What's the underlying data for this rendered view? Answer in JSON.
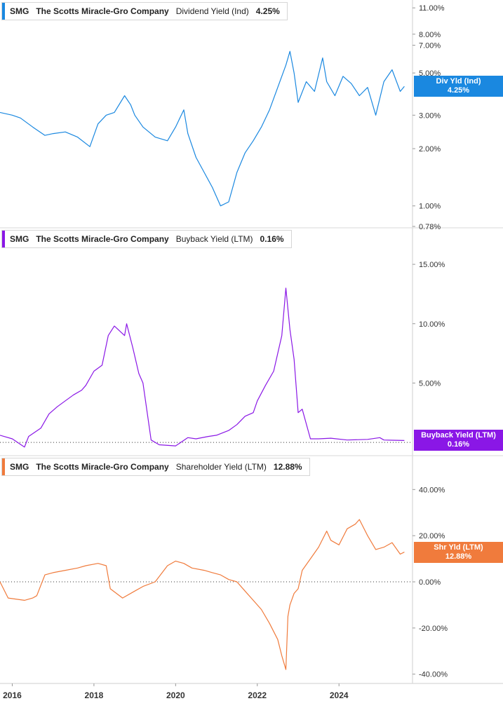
{
  "colors": {
    "dividend": "#1a88e0",
    "buyback": "#8a17e6",
    "shareholder": "#f07b3c"
  },
  "x_axis": {
    "ticks": [
      "2016",
      "2018",
      "2020",
      "2022",
      "2024"
    ]
  },
  "panels": [
    {
      "ticker": "SMG",
      "company": "The Scotts Miracle-Gro Company",
      "metric": "Dividend Yield (Ind)",
      "value": "4.25%",
      "pill_title": "Div Yld (Ind)",
      "pill_value": "4.25%",
      "color": "#1a88e0",
      "y_ticks": [
        "11.00%",
        "8.00%",
        "7.00%",
        "5.00%",
        "3.00%",
        "2.00%",
        "1.00%",
        "0.78%"
      ]
    },
    {
      "ticker": "SMG",
      "company": "The Scotts Miracle-Gro Company",
      "metric": "Buyback Yield (LTM)",
      "value": "0.16%",
      "pill_title": "Buyback Yield (LTM)",
      "pill_value": "0.16%",
      "color": "#8a17e6",
      "y_ticks": [
        "15.00%",
        "10.00%",
        "5.00%"
      ]
    },
    {
      "ticker": "SMG",
      "company": "The Scotts Miracle-Gro Company",
      "metric": "Shareholder Yield (LTM)",
      "value": "12.88%",
      "pill_title": "Shr Yld (LTM)",
      "pill_value": "12.88%",
      "color": "#f07b3c",
      "y_ticks": [
        "40.00%",
        "20.00%",
        "0.00%",
        "-20.00%",
        "-40.00%"
      ]
    }
  ],
  "chart_data": [
    {
      "type": "line",
      "scale": "log",
      "series": [
        {
          "name": "Dividend Yield (Ind)",
          "x": [
            2015.7,
            2016.0,
            2016.2,
            2016.5,
            2016.8,
            2017.0,
            2017.3,
            2017.6,
            2017.9,
            2018.1,
            2018.3,
            2018.5,
            2018.75,
            2018.9,
            2019.0,
            2019.2,
            2019.5,
            2019.8,
            2020.0,
            2020.2,
            2020.3,
            2020.5,
            2020.7,
            2020.9,
            2021.1,
            2021.3,
            2021.5,
            2021.7,
            2021.9,
            2022.1,
            2022.3,
            2022.5,
            2022.7,
            2022.8,
            2022.9,
            2023.0,
            2023.2,
            2023.4,
            2023.6,
            2023.7,
            2023.9,
            2024.1,
            2024.3,
            2024.5,
            2024.7,
            2024.9,
            2025.1,
            2025.3,
            2025.5,
            2025.6
          ],
          "y": [
            3.1,
            3.0,
            2.9,
            2.6,
            2.35,
            2.4,
            2.45,
            2.3,
            2.05,
            2.7,
            3.0,
            3.1,
            3.8,
            3.4,
            3.0,
            2.6,
            2.3,
            2.2,
            2.6,
            3.2,
            2.4,
            1.8,
            1.5,
            1.25,
            1.0,
            1.05,
            1.5,
            1.9,
            2.2,
            2.6,
            3.2,
            4.2,
            5.5,
            6.5,
            5.0,
            3.5,
            4.5,
            4.0,
            6.0,
            4.5,
            3.8,
            4.8,
            4.4,
            3.8,
            4.2,
            3.0,
            4.5,
            5.2,
            4.0,
            4.25
          ]
        }
      ],
      "ylim": [
        0.78,
        11.5
      ],
      "xlim": [
        2015.7,
        2025.8
      ]
    },
    {
      "type": "line",
      "series": [
        {
          "name": "Buyback Yield (LTM)",
          "x": [
            2015.7,
            2016.0,
            2016.3,
            2016.4,
            2016.7,
            2016.9,
            2017.1,
            2017.3,
            2017.5,
            2017.7,
            2017.8,
            2018.0,
            2018.2,
            2018.35,
            2018.5,
            2018.75,
            2018.8,
            2018.95,
            2019.1,
            2019.2,
            2019.4,
            2019.6,
            2020.0,
            2020.3,
            2020.5,
            2020.8,
            2021.0,
            2021.3,
            2021.5,
            2021.7,
            2021.9,
            2022.0,
            2022.2,
            2022.4,
            2022.6,
            2022.7,
            2022.8,
            2022.9,
            2023.0,
            2023.1,
            2023.3,
            2023.5,
            2023.8,
            2024.2,
            2024.7,
            2025.0,
            2025.1,
            2025.3,
            2025.6
          ],
          "y": [
            0.6,
            0.3,
            -0.4,
            0.5,
            1.2,
            2.4,
            3.0,
            3.5,
            4.0,
            4.4,
            4.8,
            6.0,
            6.5,
            9.0,
            9.8,
            9.0,
            10.0,
            8.0,
            5.8,
            5.0,
            0.2,
            -0.2,
            -0.3,
            0.4,
            0.3,
            0.5,
            0.6,
            1.0,
            1.5,
            2.2,
            2.5,
            3.5,
            4.8,
            6.0,
            9.0,
            13.0,
            9.5,
            7.0,
            2.5,
            2.8,
            0.3,
            0.3,
            0.35,
            0.2,
            0.25,
            0.4,
            0.2,
            0.18,
            0.16
          ]
        }
      ],
      "ylim": [
        -1.0,
        16.6
      ],
      "xlim": [
        2015.7,
        2025.8
      ]
    },
    {
      "type": "line",
      "series": [
        {
          "name": "Shareholder Yield (LTM)",
          "x": [
            2015.7,
            2015.9,
            2016.3,
            2016.5,
            2016.6,
            2016.8,
            2017.0,
            2017.3,
            2017.6,
            2017.8,
            2018.1,
            2018.3,
            2018.4,
            2018.7,
            2019.0,
            2019.2,
            2019.5,
            2019.8,
            2020.0,
            2020.2,
            2020.4,
            2020.7,
            2020.9,
            2021.1,
            2021.3,
            2021.5,
            2021.7,
            2021.9,
            2022.1,
            2022.3,
            2022.5,
            2022.6,
            2022.7,
            2022.75,
            2022.8,
            2022.9,
            2023.0,
            2023.1,
            2023.3,
            2023.5,
            2023.7,
            2023.8,
            2024.0,
            2024.2,
            2024.4,
            2024.5,
            2024.7,
            2024.9,
            2025.1,
            2025.3,
            2025.5,
            2025.6
          ],
          "y": [
            0.0,
            -7.0,
            -8.0,
            -7.0,
            -6.0,
            3.0,
            4.0,
            5.0,
            6.0,
            7.0,
            8.0,
            7.0,
            -3.0,
            -7.0,
            -4.0,
            -2.0,
            0.0,
            7.0,
            9.0,
            8.0,
            6.0,
            5.0,
            4.0,
            3.0,
            1.0,
            0.0,
            -4.0,
            -8.0,
            -12.0,
            -18.0,
            -25.0,
            -32.0,
            -38.0,
            -15.0,
            -10.0,
            -5.0,
            -3.0,
            5.0,
            10.0,
            15.0,
            22.0,
            18.0,
            16.0,
            23.0,
            25.0,
            27.0,
            20.0,
            14.0,
            15.0,
            17.0,
            12.0,
            12.88
          ]
        }
      ],
      "ylim": [
        -41.0,
        48.0
      ],
      "xlim": [
        2015.7,
        2025.8
      ]
    }
  ]
}
